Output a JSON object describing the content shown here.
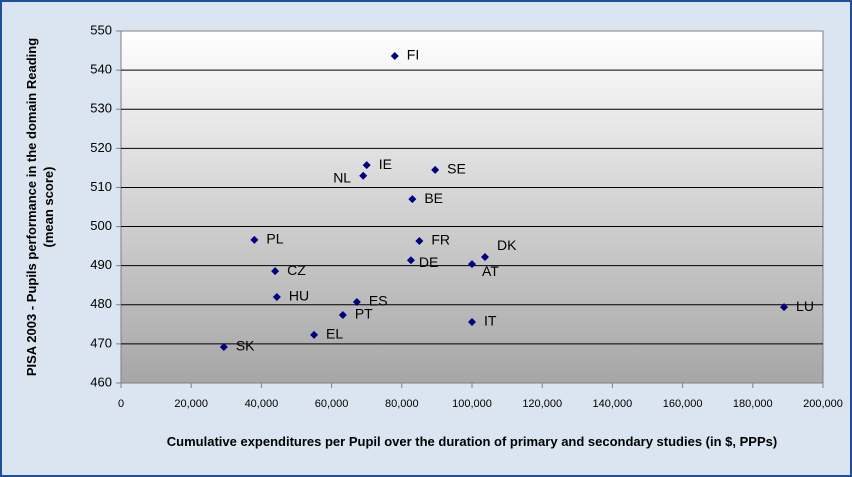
{
  "chart_data": {
    "type": "scatter",
    "xlabel": "Cumulative expenditures per Pupil over the duration of primary and secondary studies (in $, PPPs)",
    "ylabel": "PISA 2003 - Pupils performance in the domain Reading (mean score)",
    "series": [
      {
        "color": "#000080",
        "labels": [
          "FI",
          "IE",
          "NL",
          "SE",
          "BE",
          "PL",
          "FR",
          "DK",
          "DE",
          "AT",
          "CZ",
          "HU",
          "ES",
          "LU",
          "PT",
          "IT",
          "EL",
          "SK"
        ],
        "x": [
          78000,
          70000,
          69000,
          89500,
          83000,
          38000,
          85000,
          103700,
          82600,
          100000,
          43900,
          44400,
          67200,
          188900,
          63200,
          100000,
          55000,
          29300
        ],
        "y": [
          543.6,
          515.7,
          513,
          514.5,
          507,
          496.6,
          496.3,
          492.2,
          491.4,
          490.4,
          488.6,
          482,
          480.7,
          479.4,
          477.4,
          475.6,
          472.3,
          469.2
        ]
      }
    ],
    "xlim": [
      0,
      200000
    ],
    "xticks": [
      0,
      {
        "value": 20000,
        "label": "20,000"
      },
      {
        "value": 40000,
        "label": "40,000"
      },
      {
        "value": 60000,
        "label": "60,000"
      },
      {
        "value": 80000,
        "label": "80,000"
      },
      {
        "value": 100000,
        "label": "100,000"
      },
      {
        "value": 120000,
        "label": "120,000"
      },
      {
        "value": 140000,
        "label": "140,000"
      },
      {
        "value": 160000,
        "label": "160,000"
      },
      {
        "value": 180000,
        "label": "180,000"
      },
      {
        "value": 200000,
        "label": "200,000"
      }
    ],
    "ylim": [
      460,
      550
    ],
    "yticks": [
      460,
      470,
      480,
      490,
      500,
      510,
      520,
      530,
      540,
      550
    ],
    "grid": true
  }
}
